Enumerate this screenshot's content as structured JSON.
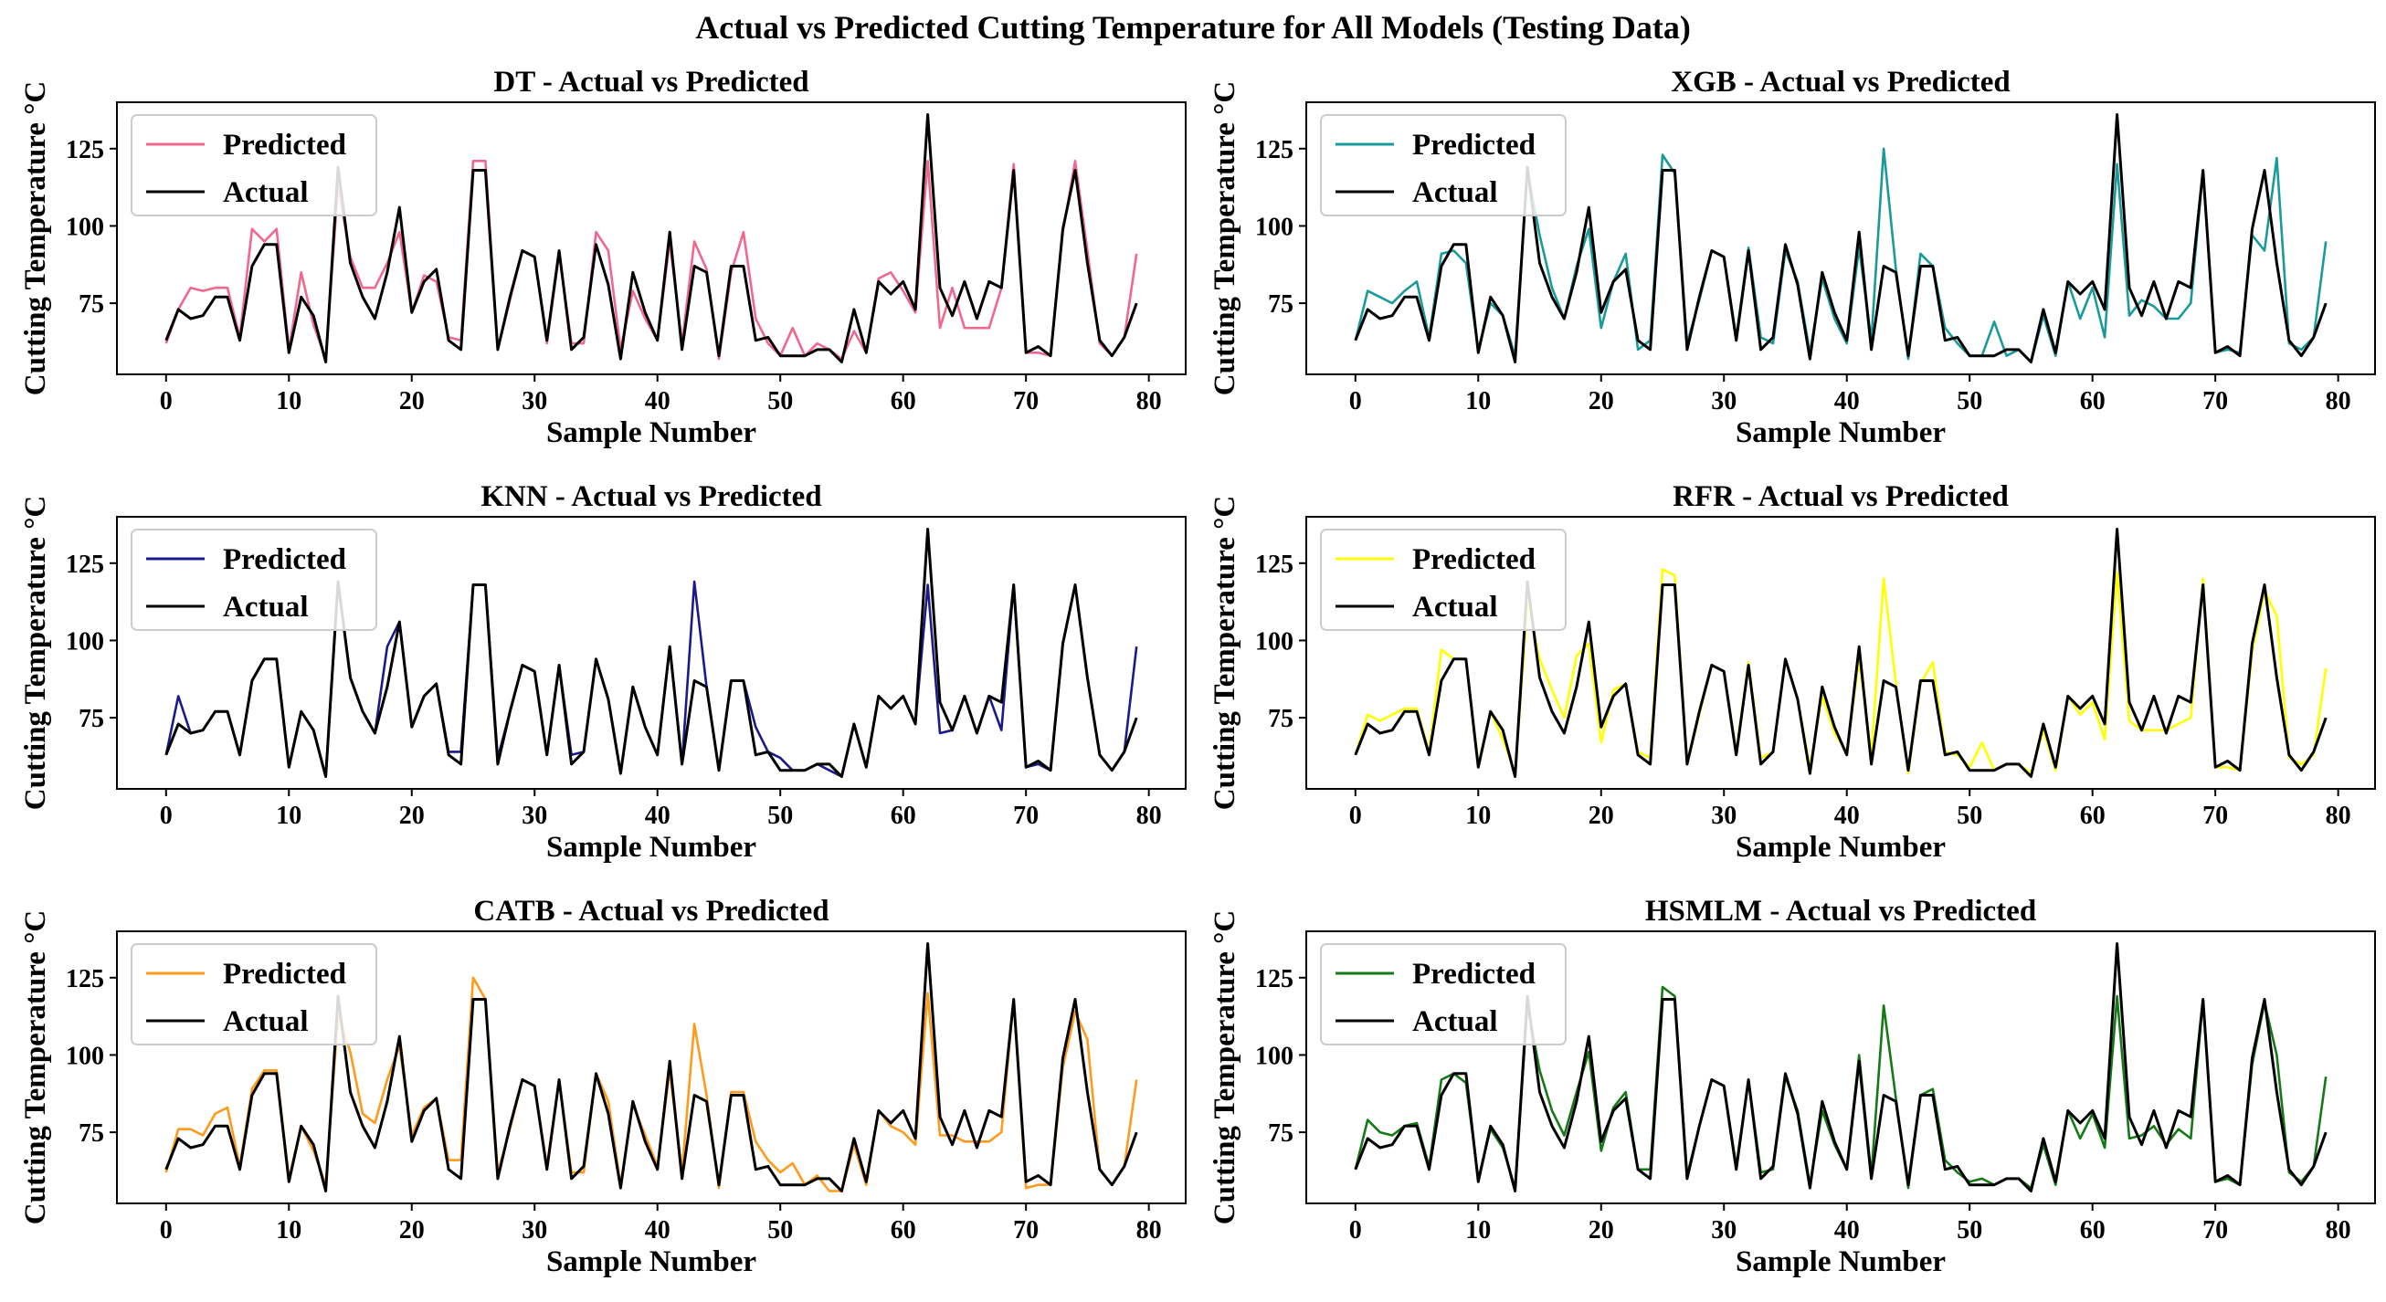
{
  "figure": {
    "title": "Actual vs Predicted Cutting Temperature for All Models (Testing Data)"
  },
  "chart_data": [
    {
      "type": "line",
      "title": "DT - Actual vs Predicted",
      "xlabel": "Sample Number",
      "ylabel": "Cutting Temperature °C",
      "xlim": [
        -4,
        83
      ],
      "ylim": [
        52,
        140
      ],
      "xticks": [
        0,
        10,
        20,
        30,
        40,
        50,
        60,
        70,
        80
      ],
      "yticks": [
        75,
        100,
        125
      ],
      "legend": "top-left",
      "series": [
        {
          "name": "Predicted",
          "color": "#f0688f",
          "values": [
            62,
            73,
            80,
            79,
            80,
            80,
            64,
            99,
            95,
            99,
            60,
            85,
            68,
            57,
            113,
            90,
            80,
            80,
            88,
            98,
            72,
            84,
            82,
            64,
            63,
            121,
            121,
            60,
            76,
            92,
            90,
            62,
            91,
            62,
            62,
            98,
            92,
            60,
            79,
            70,
            63,
            95,
            62,
            95,
            86,
            57,
            85,
            98,
            70,
            62,
            58,
            67,
            58,
            62,
            60,
            57,
            66,
            59,
            83,
            85,
            79,
            72,
            121,
            67,
            80,
            67,
            67,
            67,
            80,
            120,
            59,
            59,
            58,
            98,
            121,
            92,
            62,
            58,
            64,
            91
          ]
        },
        {
          "name": "Actual",
          "color": "#000000",
          "values": [
            63,
            73,
            70,
            71,
            77,
            77,
            63,
            87,
            94,
            94,
            59,
            77,
            71,
            56,
            119,
            88,
            77,
            70,
            85,
            106,
            72,
            82,
            86,
            63,
            60,
            118,
            118,
            60,
            77,
            92,
            90,
            63,
            92,
            60,
            64,
            94,
            81,
            57,
            85,
            72,
            63,
            98,
            60,
            87,
            85,
            58,
            87,
            87,
            63,
            64,
            58,
            58,
            58,
            60,
            60,
            56,
            73,
            59,
            82,
            78,
            82,
            73,
            136,
            80,
            71,
            82,
            70,
            82,
            80,
            118,
            59,
            61,
            58,
            99,
            118,
            88,
            63,
            58,
            64,
            75
          ]
        }
      ]
    },
    {
      "type": "line",
      "title": "XGB - Actual vs Predicted",
      "xlabel": "Sample Number",
      "ylabel": "Cutting Temperature °C",
      "xlim": [
        -4,
        83
      ],
      "ylim": [
        52,
        140
      ],
      "xticks": [
        0,
        10,
        20,
        30,
        40,
        50,
        60,
        70,
        80
      ],
      "yticks": [
        75,
        100,
        125
      ],
      "legend": "top-left",
      "series": [
        {
          "name": "Predicted",
          "color": "#1a9a9a",
          "values": [
            63,
            79,
            77,
            75,
            79,
            82,
            64,
            91,
            92,
            88,
            60,
            75,
            71,
            58,
            118,
            97,
            80,
            70,
            87,
            99,
            67,
            82,
            91,
            60,
            63,
            123,
            117,
            62,
            76,
            92,
            90,
            64,
            93,
            64,
            62,
            92,
            82,
            59,
            83,
            70,
            62,
            93,
            63,
            125,
            86,
            57,
            91,
            87,
            67,
            62,
            58,
            58,
            69,
            58,
            60,
            56,
            71,
            58,
            82,
            70,
            80,
            64,
            120,
            71,
            76,
            74,
            70,
            70,
            75,
            118,
            59,
            60,
            59,
            97,
            92,
            122,
            62,
            60,
            64,
            95
          ]
        },
        {
          "name": "Actual",
          "color": "#000000",
          "values": [
            63,
            73,
            70,
            71,
            77,
            77,
            63,
            87,
            94,
            94,
            59,
            77,
            71,
            56,
            119,
            88,
            77,
            70,
            85,
            106,
            72,
            82,
            86,
            63,
            60,
            118,
            118,
            60,
            77,
            92,
            90,
            63,
            92,
            60,
            64,
            94,
            81,
            57,
            85,
            72,
            63,
            98,
            60,
            87,
            85,
            58,
            87,
            87,
            63,
            64,
            58,
            58,
            58,
            60,
            60,
            56,
            73,
            59,
            82,
            78,
            82,
            73,
            136,
            80,
            71,
            82,
            70,
            82,
            80,
            118,
            59,
            61,
            58,
            99,
            118,
            88,
            63,
            58,
            64,
            75
          ]
        }
      ]
    },
    {
      "type": "line",
      "title": "KNN - Actual vs Predicted",
      "xlabel": "Sample Number",
      "ylabel": "Cutting Temperature °C",
      "xlim": [
        -4,
        83
      ],
      "ylim": [
        52,
        140
      ],
      "xticks": [
        0,
        10,
        20,
        30,
        40,
        50,
        60,
        70,
        80
      ],
      "yticks": [
        75,
        100,
        125
      ],
      "legend": "top-left",
      "series": [
        {
          "name": "Predicted",
          "color": "#1a1a8c",
          "values": [
            63,
            82,
            70,
            71,
            77,
            77,
            63,
            87,
            94,
            94,
            59,
            77,
            71,
            56,
            119,
            88,
            77,
            70,
            98,
            106,
            72,
            82,
            86,
            64,
            64,
            118,
            118,
            62,
            77,
            92,
            90,
            63,
            92,
            63,
            64,
            94,
            81,
            57,
            85,
            72,
            63,
            98,
            60,
            119,
            85,
            58,
            87,
            87,
            72,
            64,
            62,
            58,
            58,
            60,
            58,
            56,
            73,
            59,
            82,
            78,
            82,
            73,
            118,
            70,
            71,
            82,
            70,
            82,
            71,
            118,
            59,
            60,
            58,
            99,
            118,
            88,
            63,
            58,
            64,
            98
          ]
        },
        {
          "name": "Actual",
          "color": "#000000",
          "values": [
            63,
            73,
            70,
            71,
            77,
            77,
            63,
            87,
            94,
            94,
            59,
            77,
            71,
            56,
            119,
            88,
            77,
            70,
            85,
            106,
            72,
            82,
            86,
            63,
            60,
            118,
            118,
            60,
            77,
            92,
            90,
            63,
            92,
            60,
            64,
            94,
            81,
            57,
            85,
            72,
            63,
            98,
            60,
            87,
            85,
            58,
            87,
            87,
            63,
            64,
            58,
            58,
            58,
            60,
            60,
            56,
            73,
            59,
            82,
            78,
            82,
            73,
            136,
            80,
            71,
            82,
            70,
            82,
            80,
            118,
            59,
            61,
            58,
            99,
            118,
            88,
            63,
            58,
            64,
            75
          ]
        }
      ]
    },
    {
      "type": "line",
      "title": "RFR - Actual vs Predicted",
      "xlabel": "Sample Number",
      "ylabel": "Cutting Temperature °C",
      "xlim": [
        -4,
        83
      ],
      "ylim": [
        52,
        140
      ],
      "xticks": [
        0,
        10,
        20,
        30,
        40,
        50,
        60,
        70,
        80
      ],
      "yticks": [
        75,
        100,
        125
      ],
      "legend": "top-left",
      "series": [
        {
          "name": "Predicted",
          "color": "#ffff00",
          "values": [
            63,
            76,
            74,
            76,
            78,
            78,
            64,
            97,
            94,
            94,
            60,
            77,
            68,
            57,
            112,
            94,
            84,
            75,
            95,
            99,
            67,
            84,
            86,
            64,
            62,
            123,
            121,
            60,
            76,
            92,
            90,
            64,
            93,
            62,
            64,
            94,
            81,
            59,
            82,
            70,
            64,
            94,
            63,
            120,
            86,
            57,
            86,
            93,
            64,
            63,
            59,
            67,
            58,
            60,
            60,
            57,
            71,
            58,
            82,
            76,
            80,
            68,
            122,
            74,
            71,
            71,
            71,
            73,
            75,
            120,
            59,
            59,
            58,
            96,
            116,
            108,
            62,
            60,
            63,
            91
          ]
        },
        {
          "name": "Actual",
          "color": "#000000",
          "values": [
            63,
            73,
            70,
            71,
            77,
            77,
            63,
            87,
            94,
            94,
            59,
            77,
            71,
            56,
            119,
            88,
            77,
            70,
            85,
            106,
            72,
            82,
            86,
            63,
            60,
            118,
            118,
            60,
            77,
            92,
            90,
            63,
            92,
            60,
            64,
            94,
            81,
            57,
            85,
            72,
            63,
            98,
            60,
            87,
            85,
            58,
            87,
            87,
            63,
            64,
            58,
            58,
            58,
            60,
            60,
            56,
            73,
            59,
            82,
            78,
            82,
            73,
            136,
            80,
            71,
            82,
            70,
            82,
            80,
            118,
            59,
            61,
            58,
            99,
            118,
            88,
            63,
            58,
            64,
            75
          ]
        }
      ]
    },
    {
      "type": "line",
      "title": "CATB - Actual vs Predicted",
      "xlabel": "Sample Number",
      "ylabel": "Cutting Temperature °C",
      "xlim": [
        -4,
        83
      ],
      "ylim": [
        52,
        140
      ],
      "xticks": [
        0,
        10,
        20,
        30,
        40,
        50,
        60,
        70,
        80
      ],
      "yticks": [
        75,
        100,
        125
      ],
      "legend": "top-left",
      "series": [
        {
          "name": "Predicted",
          "color": "#ff9a1a",
          "values": [
            62,
            76,
            76,
            74,
            81,
            83,
            64,
            89,
            95,
            95,
            60,
            77,
            69,
            58,
            113,
            101,
            81,
            78,
            92,
            103,
            74,
            83,
            86,
            66,
            66,
            125,
            118,
            62,
            76,
            92,
            90,
            64,
            92,
            62,
            62,
            94,
            85,
            58,
            84,
            74,
            64,
            95,
            62,
            110,
            87,
            57,
            88,
            88,
            72,
            66,
            62,
            65,
            58,
            61,
            56,
            56,
            71,
            58,
            82,
            77,
            75,
            71,
            120,
            74,
            74,
            72,
            72,
            72,
            75,
            118,
            57,
            58,
            58,
            96,
            114,
            105,
            63,
            58,
            64,
            92
          ]
        },
        {
          "name": "Actual",
          "color": "#000000",
          "values": [
            63,
            73,
            70,
            71,
            77,
            77,
            63,
            87,
            94,
            94,
            59,
            77,
            71,
            56,
            119,
            88,
            77,
            70,
            85,
            106,
            72,
            82,
            86,
            63,
            60,
            118,
            118,
            60,
            77,
            92,
            90,
            63,
            92,
            60,
            64,
            94,
            81,
            57,
            85,
            72,
            63,
            98,
            60,
            87,
            85,
            58,
            87,
            87,
            63,
            64,
            58,
            58,
            58,
            60,
            60,
            56,
            73,
            59,
            82,
            78,
            82,
            73,
            136,
            80,
            71,
            82,
            70,
            82,
            80,
            118,
            59,
            61,
            58,
            99,
            118,
            88,
            63,
            58,
            64,
            75
          ]
        }
      ]
    },
    {
      "type": "line",
      "title": "HSMLM - Actual vs Predicted",
      "xlabel": "Sample Number",
      "ylabel": "Cutting Temperature °C",
      "xlim": [
        -4,
        83
      ],
      "ylim": [
        52,
        140
      ],
      "xticks": [
        0,
        10,
        20,
        30,
        40,
        50,
        60,
        70,
        80
      ],
      "yticks": [
        75,
        100,
        125
      ],
      "legend": "top-left",
      "series": [
        {
          "name": "Predicted",
          "color": "#157a15",
          "values": [
            63,
            79,
            75,
            74,
            77,
            78,
            64,
            92,
            94,
            91,
            60,
            76,
            70,
            57,
            116,
            95,
            82,
            74,
            88,
            101,
            69,
            83,
            88,
            63,
            63,
            122,
            119,
            61,
            77,
            92,
            90,
            64,
            92,
            62,
            63,
            93,
            82,
            58,
            82,
            71,
            63,
            100,
            61,
            116,
            86,
            57,
            87,
            89,
            66,
            62,
            59,
            60,
            58,
            60,
            60,
            57,
            71,
            58,
            82,
            73,
            81,
            70,
            119,
            73,
            74,
            77,
            71,
            76,
            73,
            118,
            59,
            60,
            58,
            97,
            117,
            100,
            62,
            59,
            64,
            93
          ]
        },
        {
          "name": "Actual",
          "color": "#000000",
          "values": [
            63,
            73,
            70,
            71,
            77,
            77,
            63,
            87,
            94,
            94,
            59,
            77,
            71,
            56,
            119,
            88,
            77,
            70,
            85,
            106,
            72,
            82,
            86,
            63,
            60,
            118,
            118,
            60,
            77,
            92,
            90,
            63,
            92,
            60,
            64,
            94,
            81,
            57,
            85,
            72,
            63,
            98,
            60,
            87,
            85,
            58,
            87,
            87,
            63,
            64,
            58,
            58,
            58,
            60,
            60,
            56,
            73,
            59,
            82,
            78,
            82,
            73,
            136,
            80,
            71,
            82,
            70,
            82,
            80,
            118,
            59,
            61,
            58,
            99,
            118,
            88,
            63,
            58,
            64,
            75
          ]
        }
      ]
    }
  ]
}
